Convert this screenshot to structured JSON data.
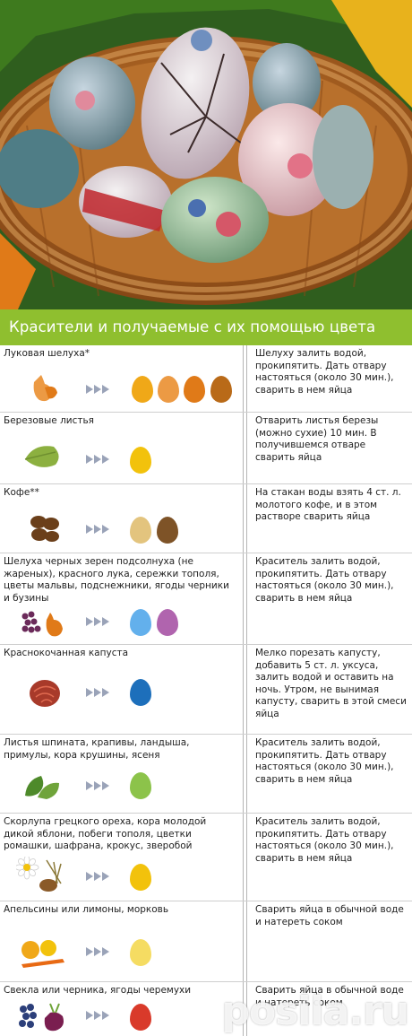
{
  "header": {
    "title": "Красители и получаемые с их помощью цвета"
  },
  "colors": {
    "header_bg": "#8fbf2f",
    "arrow": "#9aa3b8"
  },
  "rows": [
    {
      "name": "Луковая шелуха*",
      "desc": "Шелуху залить водой, прокипятить. Дать отвару настояться (около 30 мин.), сварить в нем яйца",
      "icons": [
        "onion-peel-icon"
      ],
      "eggs": [
        "#f0a818",
        "#ec9a44",
        "#e07a18",
        "#b96a18"
      ]
    },
    {
      "name": "Березовые листья",
      "desc": "Отварить листья березы (можно сухие) 10 мин. В получившемся отваре сварить яйца",
      "icons": [
        "birch-leaf-icon"
      ],
      "eggs": [
        "#f2c20c"
      ]
    },
    {
      "name": "Кофе**",
      "desc": "На стакан воды взять 4 ст. л. молотого кофе, и в этом растворе сварить яйца",
      "icons": [
        "coffee-bean-icon"
      ],
      "eggs": [
        "#e3c47e",
        "#7e5327"
      ]
    },
    {
      "name": "Шелуха черных зерен подсолнуха (не жареных), красного лука, сережки тополя, цветы мальвы, подснежники, ягоды черники и бузины",
      "desc": "Краситель залить водой, прокипятить. Дать отвару настояться (около 30 мин.), сварить в нем яйца",
      "icons": [
        "berries-onion-icon"
      ],
      "eggs": [
        "#63b0ec",
        "#b064ae"
      ]
    },
    {
      "name": "Краснокочанная капуста",
      "desc": "Мелко порезать капусту, добавить 5 ст. л. уксуса, залить водой и оставить на ночь. Утром, не вынимая капусту, сварить в этой смеси яйца",
      "icons": [
        "red-cabbage-icon"
      ],
      "eggs": [
        "#1d6fbb"
      ]
    },
    {
      "name": "Листья шпината, крапивы, ландыша, примулы, кора крушины, ясеня",
      "desc": "Краситель залить водой, прокипятить. Дать отвару настояться (около 30 мин.), сварить в нем яйца",
      "icons": [
        "green-leaves-icon"
      ],
      "eggs": [
        "#8cc34a"
      ]
    },
    {
      "name": "Скорлупа грецкого ореха, кора молодой дикой яблони, побеги тополя, цветки ромашки, шафрана, крокус, зверобой",
      "desc": "Краситель залить водой, прокипятить. Дать отвару настояться (около 30 мин.), сварить в нем яйца",
      "icons": [
        "chamomile-walnut-icon"
      ],
      "eggs": [
        "#f2c20c"
      ]
    },
    {
      "name": "Апельсины или лимоны, морковь",
      "desc": "Сварить яйца в обычной воде и натереть соком",
      "icons": [
        "citrus-carrot-icon"
      ],
      "eggs": [
        "#f5dc62"
      ]
    },
    {
      "name": "Свекла или черника, ягоды черемухи",
      "desc": "Сварить яйца в обычной воде и натереть соком",
      "icons": [
        "beet-berries-icon"
      ],
      "eggs": [
        "#d93a2a"
      ]
    }
  ],
  "watermark": "posila.ru"
}
